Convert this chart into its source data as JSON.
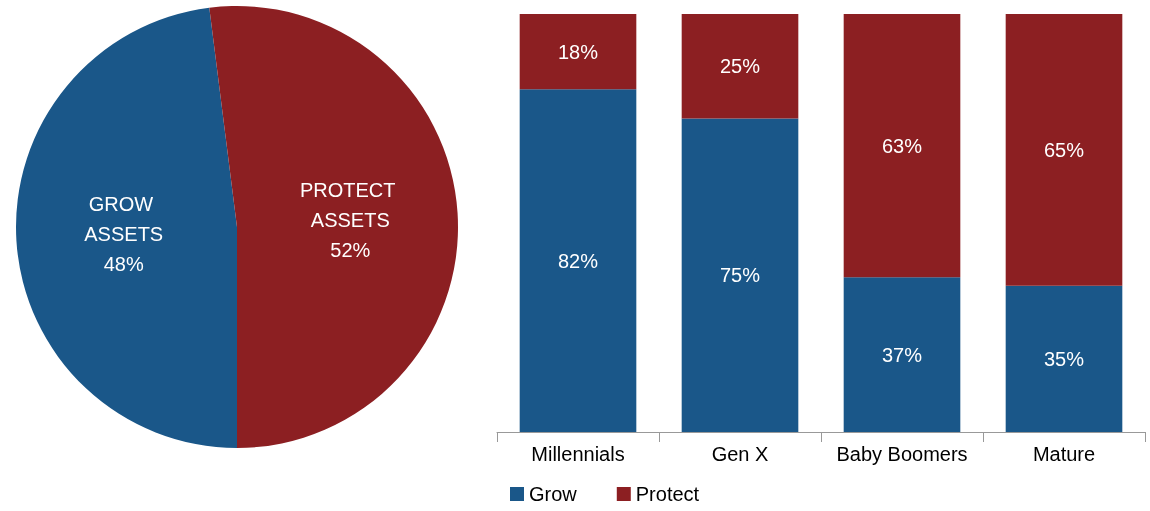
{
  "chart_data": [
    {
      "type": "pie",
      "categories": [
        "GROW ASSETS",
        "PROTECT ASSETS"
      ],
      "values": [
        48,
        52
      ],
      "colors": [
        "#1a5789",
        "#8c1f22"
      ],
      "value_labels": [
        "48%",
        "52%"
      ],
      "legend": false
    },
    {
      "type": "bar",
      "stacked": true,
      "categories": [
        "Millennials",
        "Gen X",
        "Baby Boomers",
        "Mature"
      ],
      "ylim": [
        0,
        100
      ],
      "tick_labels": "x",
      "legend": "bottom",
      "series": [
        {
          "name": "Grow",
          "color": "#1a5789",
          "values": [
            82,
            75,
            37,
            35
          ],
          "value_labels": [
            "82%",
            "75%",
            "37%",
            "35%"
          ]
        },
        {
          "name": "Protect",
          "color": "#8c1f22",
          "values": [
            18,
            25,
            63,
            65
          ],
          "value_labels": [
            "18%",
            "25%",
            "63%",
            "65%"
          ]
        }
      ]
    }
  ]
}
